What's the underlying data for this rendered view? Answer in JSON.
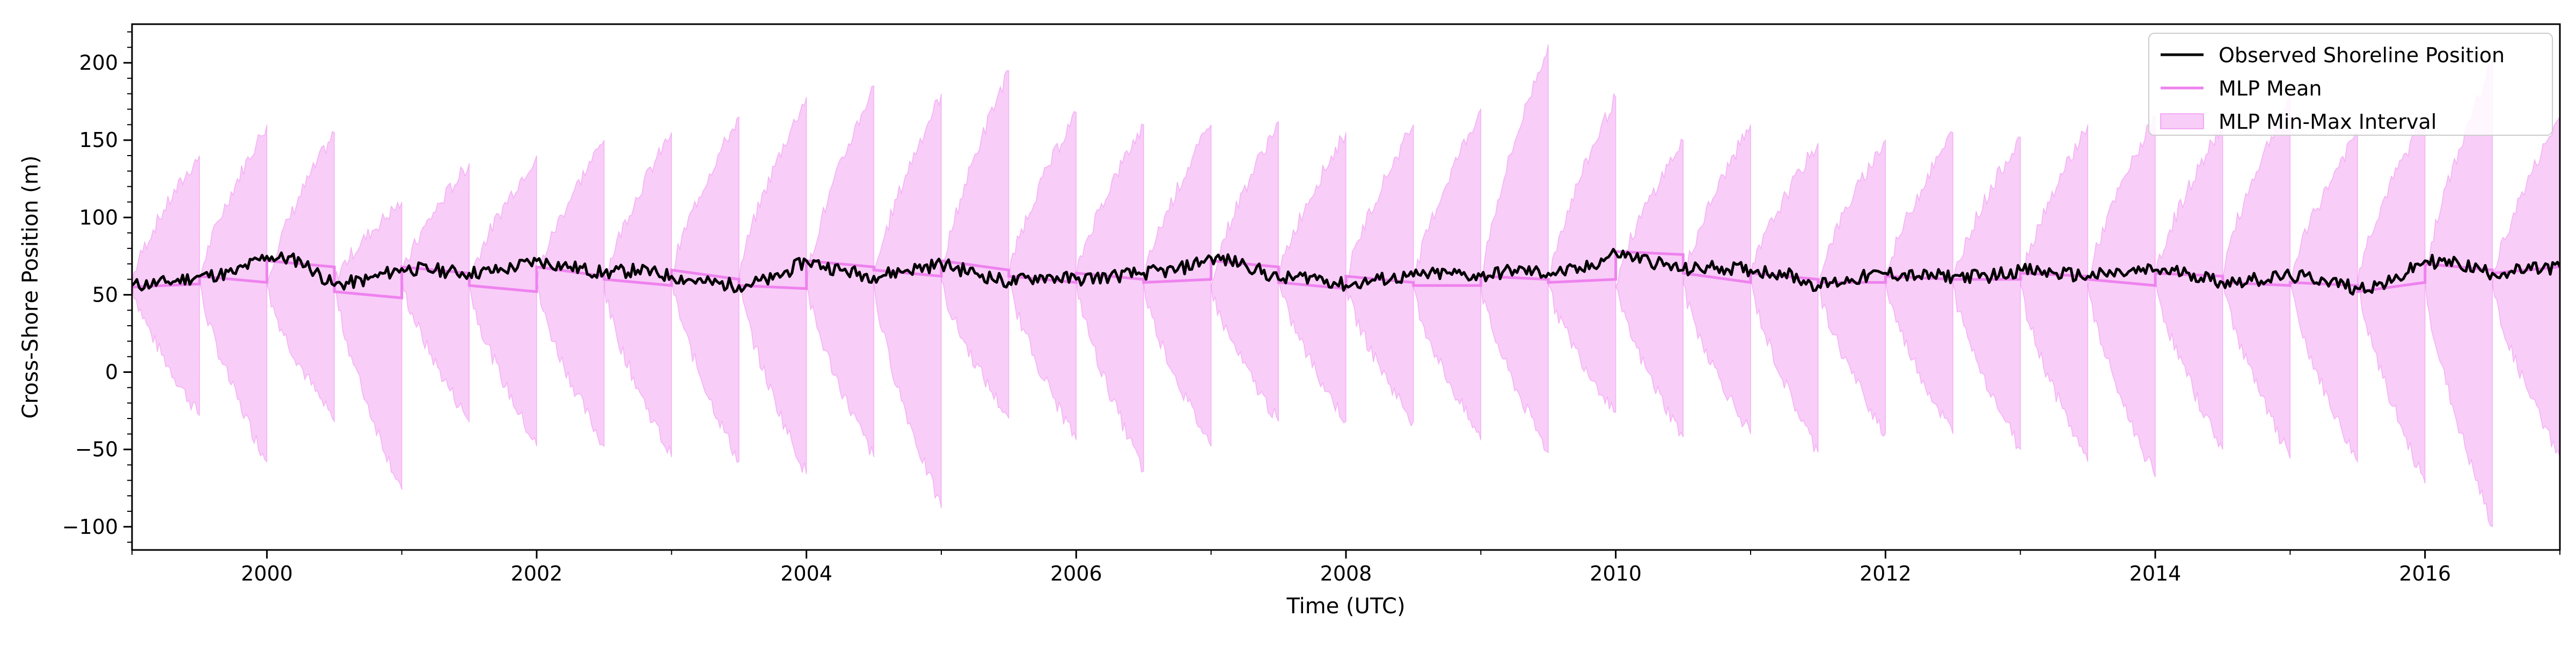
{
  "chart_data": {
    "type": "line",
    "title": "",
    "xlabel": "Time (UTC)",
    "ylabel": "Cross-Shore Position (m)",
    "xlim": [
      "1999-01-01",
      "2017-01-01"
    ],
    "ylim": [
      -115,
      225
    ],
    "x_ticks": [
      "2000",
      "2002",
      "2004",
      "2006",
      "2008",
      "2010",
      "2012",
      "2014",
      "2016"
    ],
    "y_ticks": [
      -100,
      -50,
      0,
      50,
      100,
      150,
      200
    ],
    "grid": false,
    "legend_position": "top-right",
    "colors": {
      "observed": "#000000",
      "mean": "#ee82ee",
      "interval_fill": "#ee82ee"
    },
    "interval_segment_months": 6,
    "series": [
      {
        "name": "Observed Shoreline Position",
        "kind": "line",
        "x": [
          "1999-01",
          "1999-04",
          "1999-07",
          "1999-10",
          "2000-01",
          "2000-04",
          "2000-07",
          "2000-10",
          "2001-01",
          "2001-04",
          "2001-07",
          "2001-10",
          "2002-01",
          "2002-04",
          "2002-07",
          "2002-10",
          "2003-01",
          "2003-04",
          "2003-07",
          "2003-10",
          "2004-01",
          "2004-04",
          "2004-07",
          "2004-10",
          "2005-01",
          "2005-04",
          "2005-07",
          "2005-10",
          "2006-01",
          "2006-04",
          "2006-07",
          "2006-10",
          "2007-01",
          "2007-04",
          "2007-07",
          "2007-10",
          "2008-01",
          "2008-04",
          "2008-07",
          "2008-10",
          "2009-01",
          "2009-04",
          "2009-07",
          "2009-10",
          "2010-01",
          "2010-04",
          "2010-07",
          "2010-10",
          "2011-01",
          "2011-04",
          "2011-07",
          "2011-10",
          "2012-01",
          "2012-04",
          "2012-07",
          "2012-10",
          "2013-01",
          "2013-04",
          "2013-07",
          "2013-10",
          "2014-01",
          "2014-04",
          "2014-07",
          "2014-10",
          "2015-01",
          "2015-04",
          "2015-07",
          "2015-10",
          "2016-01",
          "2016-04",
          "2016-07",
          "2016-10",
          "2017-01"
        ],
        "values": [
          56,
          58,
          62,
          64,
          75,
          72,
          56,
          60,
          67,
          66,
          64,
          66,
          72,
          68,
          64,
          66,
          62,
          58,
          56,
          60,
          72,
          66,
          62,
          66,
          70,
          64,
          58,
          62,
          60,
          62,
          64,
          66,
          74,
          70,
          60,
          62,
          56,
          60,
          62,
          64,
          62,
          66,
          64,
          66,
          77,
          72,
          66,
          68,
          66,
          64,
          56,
          60,
          64,
          62,
          62,
          62,
          66,
          64,
          62,
          64,
          66,
          64,
          58,
          60,
          62,
          60,
          54,
          58,
          72,
          70,
          64,
          66,
          68
        ]
      },
      {
        "name": "MLP Mean",
        "kind": "line",
        "x": [
          "1999-01",
          "1999-07",
          "1999-07",
          "2000-01",
          "2000-01",
          "2000-07",
          "2000-07",
          "2001-01",
          "2001-01",
          "2001-07",
          "2001-07",
          "2002-01",
          "2002-01",
          "2002-07",
          "2002-07",
          "2003-01",
          "2003-01",
          "2003-07",
          "2003-07",
          "2004-01",
          "2004-01",
          "2004-07",
          "2004-07",
          "2005-01",
          "2005-01",
          "2005-07",
          "2005-07",
          "2006-01",
          "2006-01",
          "2006-07",
          "2006-07",
          "2007-01",
          "2007-01",
          "2007-07",
          "2007-07",
          "2008-01",
          "2008-01",
          "2008-07",
          "2008-07",
          "2009-01",
          "2009-01",
          "2009-07",
          "2009-07",
          "2010-01",
          "2010-01",
          "2010-07",
          "2010-07",
          "2011-01",
          "2011-01",
          "2011-07",
          "2011-07",
          "2012-01",
          "2012-01",
          "2012-07",
          "2012-07",
          "2013-01",
          "2013-01",
          "2013-07",
          "2013-07",
          "2014-01",
          "2014-01",
          "2014-07",
          "2014-07",
          "2015-01",
          "2015-01",
          "2015-07",
          "2015-07",
          "2016-01",
          "2016-01",
          "2016-07",
          "2016-07",
          "2017-01"
        ],
        "values": [
          55,
          57,
          62,
          58,
          72,
          68,
          52,
          48,
          68,
          64,
          56,
          52,
          68,
          62,
          60,
          56,
          66,
          60,
          56,
          54,
          72,
          68,
          66,
          62,
          72,
          66,
          62,
          58,
          64,
          60,
          58,
          60,
          72,
          68,
          58,
          54,
          62,
          58,
          56,
          56,
          62,
          60,
          58,
          60,
          78,
          76,
          64,
          58,
          64,
          60,
          58,
          58,
          62,
          60,
          60,
          60,
          64,
          62,
          60,
          56,
          64,
          62,
          58,
          56,
          58,
          56,
          52,
          58,
          70,
          66,
          64,
          68
        ]
      },
      {
        "name": "MLP Min-Max Interval",
        "kind": "band",
        "x": [
          "1999-01",
          "1999-07",
          "2000-01",
          "2000-07",
          "2001-01",
          "2001-07",
          "2002-01",
          "2002-07",
          "2003-01",
          "2003-07",
          "2004-01",
          "2004-07",
          "2005-01",
          "2005-07",
          "2006-01",
          "2006-07",
          "2007-01",
          "2007-07",
          "2008-01",
          "2008-07",
          "2009-01",
          "2009-07",
          "2010-01",
          "2010-07",
          "2011-01",
          "2011-07",
          "2012-01",
          "2012-07",
          "2013-01",
          "2013-07",
          "2014-01",
          "2014-07",
          "2015-01",
          "2015-07",
          "2016-01",
          "2016-07"
        ],
        "segment_max": [
          140,
          160,
          155,
          110,
          135,
          140,
          150,
          155,
          165,
          178,
          185,
          180,
          195,
          168,
          160,
          160,
          162,
          155,
          160,
          170,
          212,
          178,
          150,
          160,
          148,
          150,
          155,
          152,
          160,
          165,
          160,
          178,
          155,
          165,
          200,
          165
        ],
        "segment_min": [
          -28,
          -58,
          -32,
          -76,
          -32,
          -48,
          -48,
          -55,
          -58,
          -66,
          -55,
          -88,
          -30,
          -44,
          -64,
          -48,
          -32,
          -32,
          -32,
          -44,
          -52,
          -26,
          -42,
          -40,
          -52,
          -40,
          -40,
          -50,
          -58,
          -68,
          -50,
          -56,
          -58,
          -72,
          -100,
          -55
        ]
      }
    ]
  }
}
